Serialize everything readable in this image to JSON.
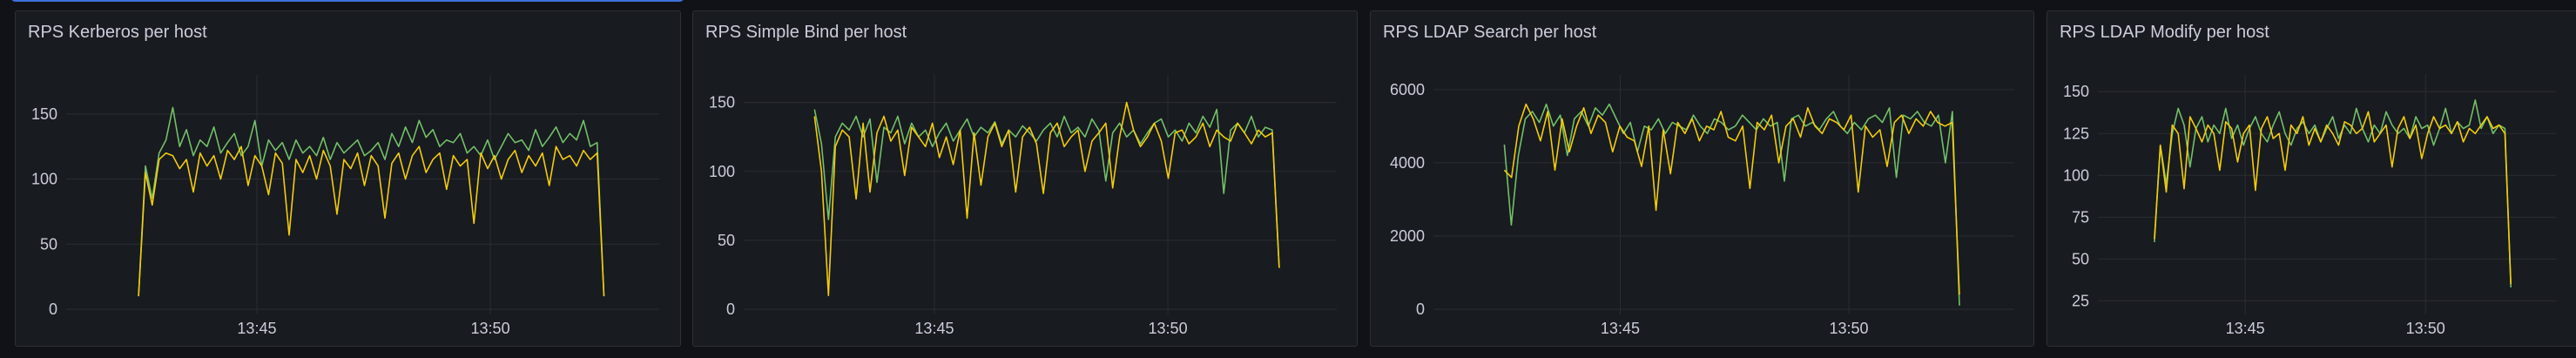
{
  "colors": {
    "series_green": "#73BF69",
    "series_yellow": "#F2CC0C",
    "grid": "#2a2d33",
    "selection": "#3d71d9"
  },
  "chart_data": [
    {
      "type": "line",
      "title": "RPS Kerberos per host",
      "x_start": "13:42:28",
      "x_end": "13:52:26",
      "xlim": [
        "13:40:55",
        "13:53:37"
      ],
      "xticks": [
        "13:45",
        "13:50"
      ],
      "ylim": [
        0,
        180
      ],
      "yticks": [
        0,
        50,
        100,
        150
      ],
      "grid": true,
      "legend": "none",
      "series": [
        {
          "color": "#73BF69",
          "values": [
            10,
            110,
            85,
            120,
            130,
            155,
            125,
            138,
            118,
            130,
            125,
            140,
            120,
            128,
            135,
            118,
            125,
            145,
            110,
            130,
            122,
            128,
            115,
            130,
            120,
            125,
            118,
            132,
            115,
            128,
            120,
            125,
            130,
            118,
            122,
            128,
            115,
            135,
            125,
            140,
            128,
            145,
            132,
            138,
            125,
            130,
            128,
            135,
            120,
            125,
            118,
            130,
            115,
            125,
            135,
            128,
            130,
            122,
            138,
            125,
            132,
            140,
            128,
            135,
            130,
            145,
            125,
            128,
            10
          ]
        },
        {
          "color": "#F2CC0C",
          "values": [
            10,
            105,
            80,
            115,
            120,
            118,
            108,
            115,
            90,
            120,
            110,
            118,
            100,
            122,
            115,
            125,
            95,
            118,
            110,
            88,
            120,
            112,
            57,
            115,
            105,
            118,
            100,
            122,
            110,
            73,
            115,
            108,
            120,
            95,
            118,
            110,
            70,
            112,
            120,
            100,
            118,
            125,
            105,
            115,
            120,
            92,
            118,
            110,
            115,
            66,
            120,
            108,
            118,
            100,
            115,
            122,
            105,
            118,
            110,
            120,
            95,
            125,
            115,
            118,
            110,
            122,
            115,
            120,
            10
          ]
        }
      ]
    },
    {
      "type": "line",
      "title": "RPS Simple Bind per host",
      "x_start": "13:42:26",
      "x_end": "13:52:23",
      "xlim": [
        "13:40:55",
        "13:53:37"
      ],
      "xticks": [
        "13:45",
        "13:50"
      ],
      "ylim": [
        0,
        170
      ],
      "yticks": [
        0,
        50,
        100,
        150
      ],
      "grid": true,
      "legend": "none",
      "series": [
        {
          "color": "#73BF69",
          "values": [
            145,
            120,
            65,
            125,
            135,
            130,
            140,
            125,
            138,
            92,
            132,
            128,
            140,
            120,
            135,
            125,
            130,
            118,
            128,
            135,
            122,
            130,
            138,
            125,
            132,
            128,
            136,
            120,
            130,
            125,
            133,
            128,
            122,
            130,
            135,
            125,
            140,
            128,
            132,
            125,
            138,
            130,
            93,
            128,
            135,
            125,
            130,
            120,
            128,
            135,
            138,
            125,
            130,
            122,
            135,
            128,
            140,
            132,
            145,
            84,
            130,
            135,
            128,
            140,
            125,
            132,
            130,
            30
          ]
        },
        {
          "color": "#F2CC0C",
          "values": [
            140,
            100,
            10,
            118,
            130,
            125,
            80,
            135,
            85,
            128,
            140,
            122,
            130,
            97,
            132,
            125,
            118,
            135,
            110,
            125,
            105,
            130,
            66,
            128,
            90,
            125,
            135,
            118,
            130,
            85,
            125,
            132,
            120,
            84,
            128,
            135,
            118,
            125,
            130,
            100,
            122,
            128,
            135,
            88,
            125,
            150,
            130,
            118,
            125,
            135,
            122,
            95,
            128,
            130,
            120,
            125,
            135,
            118,
            130,
            125,
            122,
            135,
            128,
            120,
            130,
            125,
            128,
            30
          ]
        }
      ]
    },
    {
      "type": "line",
      "title": "RPS LDAP Search per host",
      "x_start": "13:42:28",
      "x_end": "13:52:25",
      "xlim": [
        "13:40:55",
        "13:53:37"
      ],
      "xticks": [
        "13:45",
        "13:50"
      ],
      "ylim": [
        0,
        6400
      ],
      "yticks": [
        0,
        2000,
        4000,
        6000
      ],
      "grid": true,
      "legend": "none",
      "series": [
        {
          "color": "#73BF69",
          "values": [
            4500,
            2300,
            4200,
            5200,
            5400,
            5100,
            5600,
            5000,
            5300,
            4200,
            5200,
            5400,
            5000,
            5500,
            5300,
            5600,
            5200,
            4800,
            5100,
            4300,
            5000,
            4900,
            5200,
            4800,
            5100,
            5000,
            4900,
            5300,
            5000,
            4800,
            5200,
            5100,
            4900,
            5000,
            5300,
            5100,
            4900,
            5200,
            5000,
            5100,
            3500,
            5200,
            5300,
            5000,
            5100,
            4900,
            5200,
            5400,
            5000,
            4800,
            5100,
            4900,
            5200,
            5300,
            5100,
            5500,
            3600,
            5300,
            5200,
            5400,
            5100,
            5000,
            5300,
            4000,
            5400,
            100
          ]
        },
        {
          "color": "#F2CC0C",
          "values": [
            3800,
            3600,
            5000,
            5600,
            5200,
            4600,
            5400,
            3800,
            5200,
            4300,
            5000,
            5500,
            4800,
            5300,
            5100,
            4300,
            5000,
            4700,
            4600,
            3900,
            5000,
            2700,
            4900,
            3700,
            5100,
            4800,
            5200,
            4600,
            5000,
            4900,
            5400,
            4700,
            4600,
            5000,
            3300,
            5100,
            4900,
            5300,
            4000,
            5000,
            5200,
            4700,
            5500,
            5000,
            4800,
            5200,
            5100,
            4900,
            5300,
            3200,
            5000,
            4700,
            4900,
            3900,
            5100,
            5300,
            4800,
            5200,
            5000,
            5400,
            5100,
            5000,
            5100,
            400
          ]
        }
      ]
    },
    {
      "type": "line",
      "title": "RPS LDAP Modify per host",
      "x_start": "13:42:29",
      "x_end": "13:52:22",
      "xlim": [
        "13:40:55",
        "13:53:37"
      ],
      "xticks": [
        "13:45",
        "13:50"
      ],
      "ylim": [
        20,
        160
      ],
      "yticks": [
        25,
        50,
        75,
        100,
        125,
        150
      ],
      "grid": true,
      "legend": "none",
      "series": [
        {
          "color": "#73BF69",
          "values": [
            60,
            118,
            95,
            125,
            140,
            130,
            105,
            128,
            135,
            120,
            130,
            125,
            140,
            122,
            130,
            118,
            128,
            135,
            125,
            120,
            130,
            138,
            125,
            118,
            128,
            132,
            125,
            130,
            120,
            128,
            135,
            122,
            130,
            125,
            140,
            128,
            120,
            130,
            125,
            138,
            130,
            125,
            128,
            122,
            135,
            128,
            130,
            118,
            128,
            140,
            125,
            132,
            128,
            130,
            145,
            128,
            135,
            125,
            130,
            128,
            33
          ]
        },
        {
          "color": "#F2CC0C",
          "values": [
            62,
            118,
            90,
            130,
            125,
            92,
            135,
            128,
            120,
            130,
            125,
            103,
            132,
            128,
            108,
            125,
            130,
            91,
            128,
            135,
            122,
            125,
            103,
            130,
            125,
            135,
            118,
            128,
            120,
            130,
            125,
            118,
            132,
            130,
            125,
            128,
            138,
            120,
            125,
            130,
            105,
            128,
            135,
            122,
            130,
            110,
            125,
            135,
            128,
            130,
            125,
            132,
            120,
            128,
            125,
            130,
            135,
            128,
            130,
            125,
            35
          ]
        }
      ]
    }
  ]
}
